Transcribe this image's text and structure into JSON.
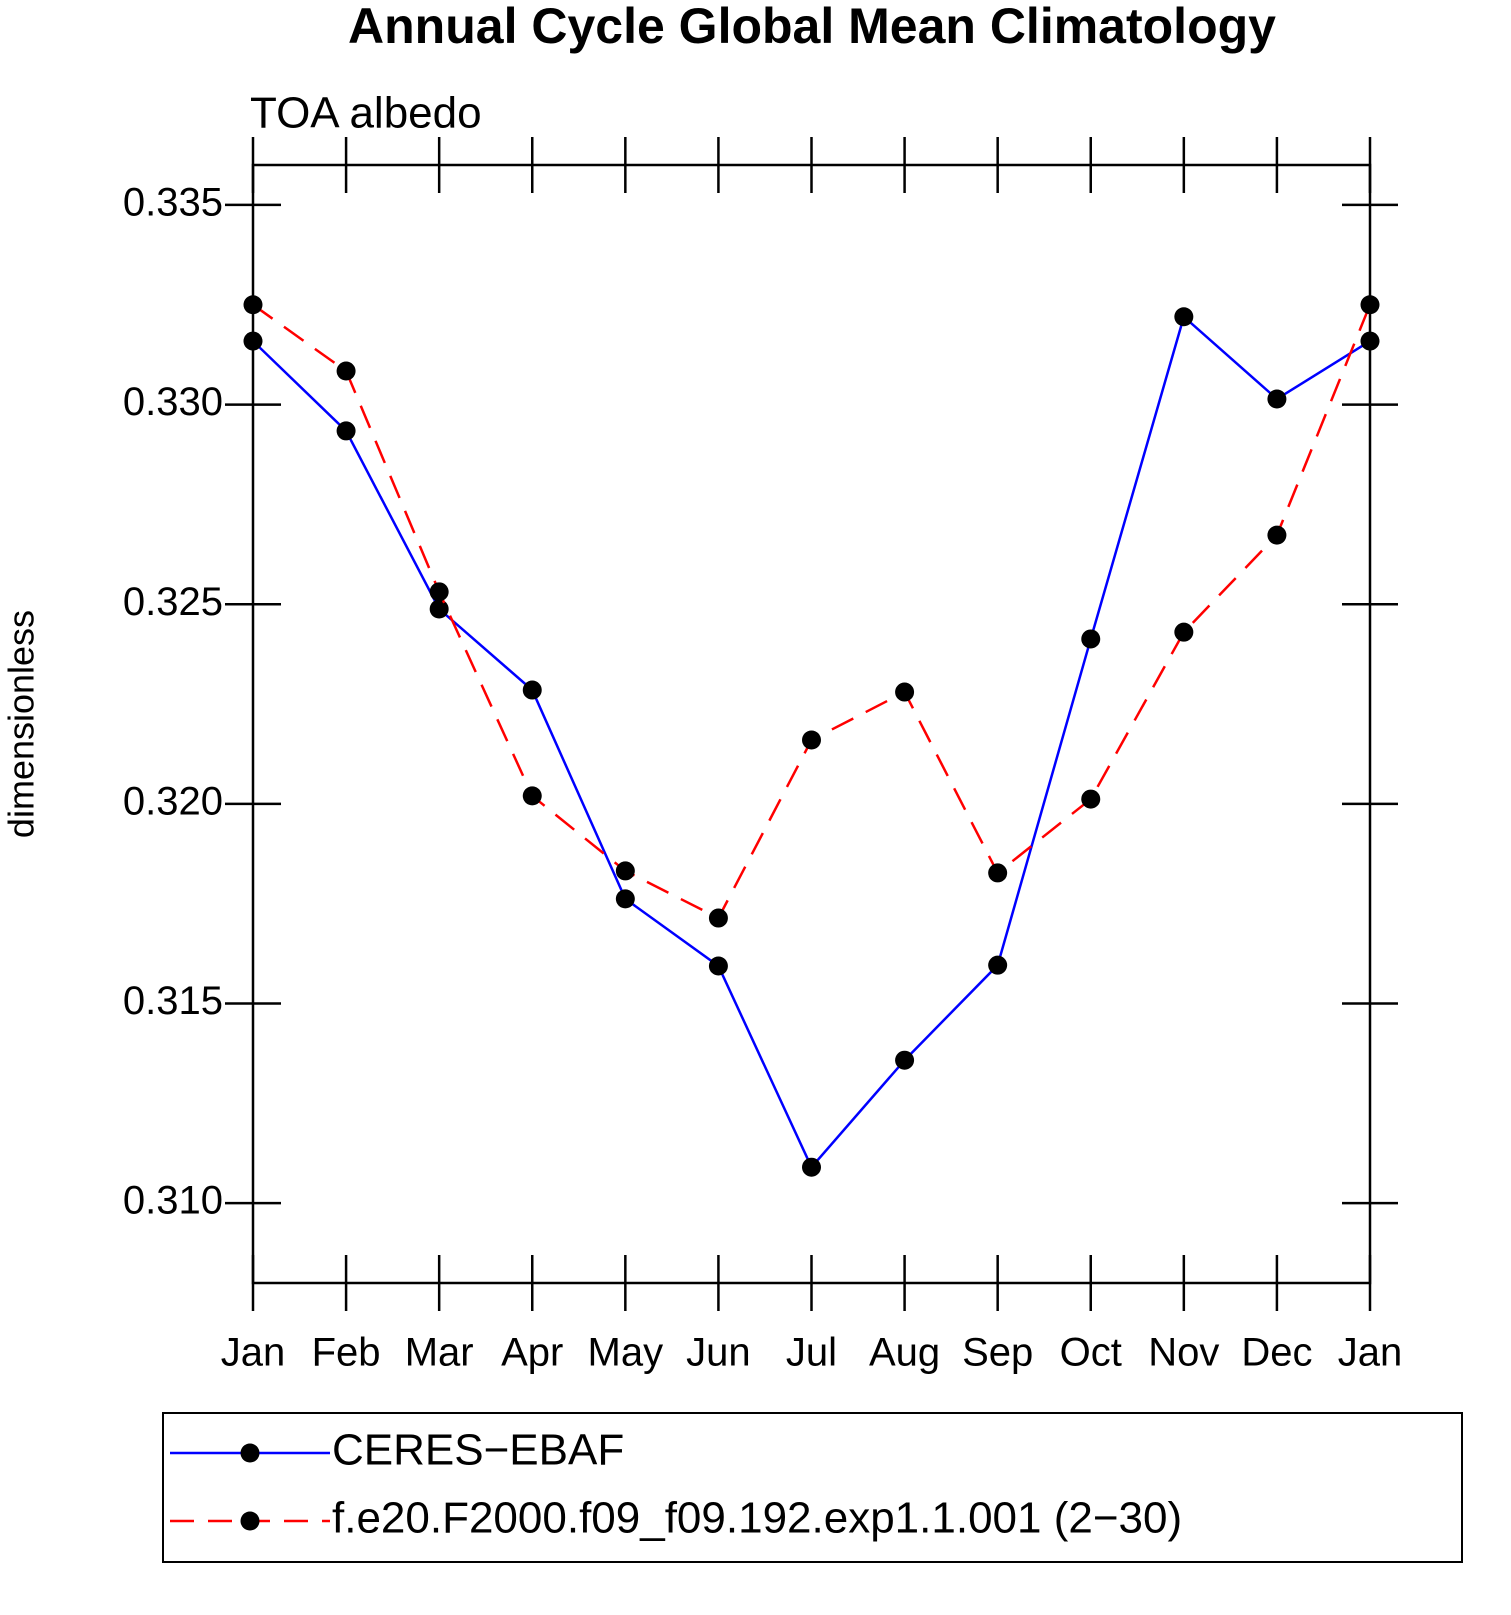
{
  "chart_data": {
    "type": "line",
    "title": "Annual Cycle Global Mean Climatology",
    "subtitle": "TOA albedo",
    "ylabel": "dimensionless",
    "categories": [
      "Jan",
      "Feb",
      "Mar",
      "Apr",
      "May",
      "Jun",
      "Jul",
      "Aug",
      "Sep",
      "Oct",
      "Nov",
      "Dec",
      "Jan"
    ],
    "series": [
      {
        "name": "CERES−EBAF",
        "color": "#0000ff",
        "dash": "solid",
        "values": [
          0.33159,
          0.32934,
          0.32488,
          0.32285,
          0.31762,
          0.31594,
          0.3109,
          0.31358,
          0.31596,
          0.32413,
          0.3322,
          0.33014,
          0.33159
        ]
      },
      {
        "name": "f.e20.F2000.f09_f09.192.exp1.1.001 (2−30)",
        "color": "#ff0000",
        "dash": "dashed",
        "values": [
          0.3325,
          0.33084,
          0.32531,
          0.3202,
          0.31832,
          0.31714,
          0.3216,
          0.3228,
          0.31827,
          0.32012,
          0.3243,
          0.32673,
          0.3325
        ]
      }
    ],
    "ylim": [
      0.308,
      0.336
    ],
    "yticks": [
      {
        "value": 0.31,
        "label": "0.310"
      },
      {
        "value": 0.315,
        "label": "0.315"
      },
      {
        "value": 0.32,
        "label": "0.320"
      },
      {
        "value": 0.325,
        "label": "0.325"
      },
      {
        "value": 0.33,
        "label": "0.330"
      },
      {
        "value": 0.335,
        "label": "0.335"
      }
    ],
    "grid": false,
    "markers": true
  }
}
